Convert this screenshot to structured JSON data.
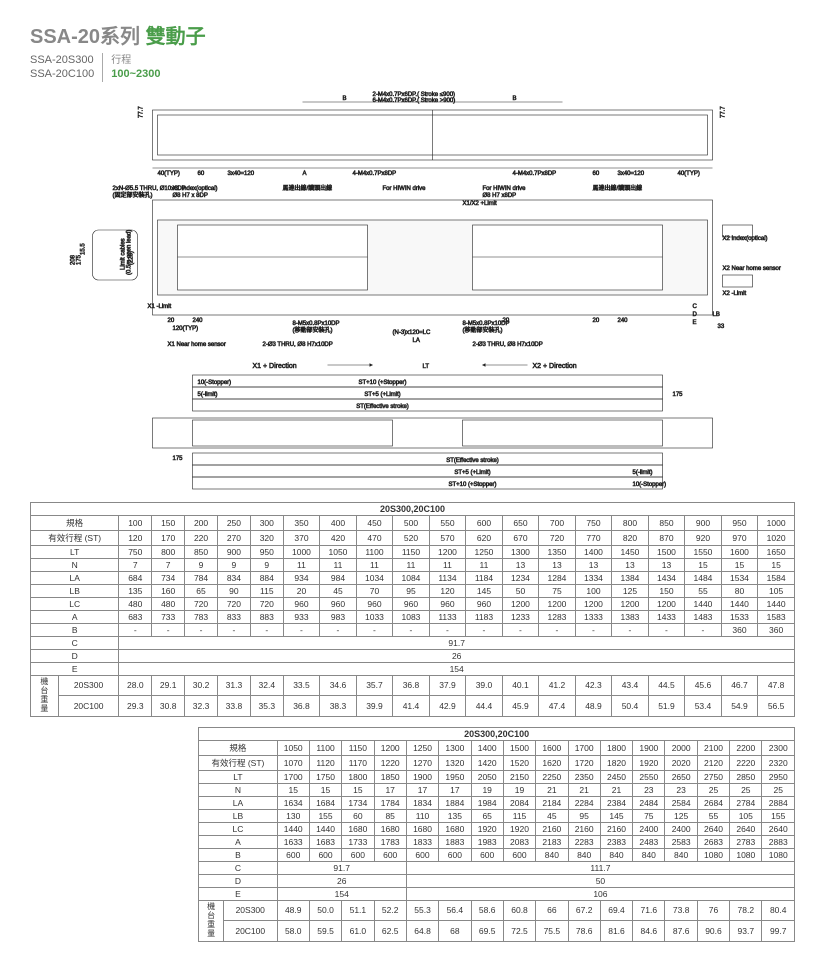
{
  "header": {
    "title_prefix": "SSA-20",
    "title_series": "系列",
    "title_suffix": "雙動子",
    "model1": "SSA-20S300",
    "model2": "SSA-20C100",
    "stroke_label": "行程",
    "stroke_range": "100~2300"
  },
  "diagram": {
    "callouts": {
      "c1": "2-M4x0.7Px6DP.( Stroke ≤900)",
      "c2": "6-M4x0.7Px6DP.( Stroke >900)",
      "c3": "4-M4x0.7Px8DP",
      "c4": "4-M4x0.7Px8DP",
      "c5": "2xN-Ø5.5 THRU, Ø10x6DP",
      "c5b": "(固定部安裝孔)",
      "c6": "X1 Index(optical)",
      "c6b": "Ø8 H7 x 8DP",
      "c7": "馬達出線/讀頭出線",
      "c8": "For HIWIN drive",
      "c9": "For HIWIN drive",
      "c9b": "Ø8 H7 x8DP",
      "c10": "馬達出線/讀頭出線",
      "c11": "X1/X2 +Limit",
      "c12": "X2 Index(optical)",
      "c13": "X2 Near home sensor",
      "c14": "X2 -Limit",
      "c15": "X1 -Limit",
      "c16": "Limit cables",
      "c16b": "(0.5m open lead)",
      "c17": "X1 Near home sensor",
      "c18": "8-M5x0.8Px10DP",
      "c18b": "(移動部安裝孔)",
      "c19": "8-M5x0.8Px10DP",
      "c19b": "(移動部安裝孔)",
      "c20": "2-Ø3 THRU, Ø8 H7x10DP",
      "c21": "2-Ø3 THRU, Ø8 H7x10DP",
      "c22": "(N-3)x120=LC",
      "dir1": "X1 + Direction",
      "dir2": "X2 + Direction",
      "st1": "10(-Stopper)",
      "st2": "5(-limit)",
      "st3": "ST+10 (+Stopper)",
      "st4": "ST+5 (+Limit)",
      "st5": "ST(Effective stroke)",
      "st6": "ST(Effective stroke)",
      "st7": "ST+5 (+Limit)",
      "st8": "ST+10 (+Stopper)",
      "st9": "5(-limit)",
      "st10": "10(-Stopper)"
    },
    "dims": {
      "d_77_7a": "77.7",
      "d_77_7b": "77.7",
      "d_B1": "B",
      "d_B2": "B",
      "d_40typ1": "40(TYP)",
      "d_40typ2": "40(TYP)",
      "d_60a": "60",
      "d_60b": "60",
      "d_3x40a": "3x40=120",
      "d_3x40b": "3x40=120",
      "d_A1": "A",
      "d_A2": "A",
      "d_15_5": "15.5",
      "d_208": "208",
      "d_175a": "175",
      "d_228": "(228)",
      "d_20a": "20",
      "d_20b": "20",
      "d_20c": "20",
      "d_240a": "240",
      "d_240b": "240",
      "d_120typ": "120(TYP)",
      "d_C": "C",
      "d_D": "D",
      "d_E": "E",
      "d_LA": "LA",
      "d_LB": "LB",
      "d_LT": "LT",
      "d_33": "33",
      "d_175b": "175",
      "d_175c": "175"
    }
  },
  "table1": {
    "caption": "20S300,20C100",
    "row_spec": "規格",
    "row_st": "有效行程 (ST)",
    "row_lt": "LT",
    "row_n": "N",
    "row_la": "LA",
    "row_lb": "LB",
    "row_lc": "LC",
    "row_a": "A",
    "row_b": "B",
    "row_c": "C",
    "row_d": "D",
    "row_e": "E",
    "row_wt": "機台重量",
    "row_20s300": "20S300",
    "row_20c100": "20C100",
    "spec": [
      "100",
      "150",
      "200",
      "250",
      "300",
      "350",
      "400",
      "450",
      "500",
      "550",
      "600",
      "650",
      "700",
      "750",
      "800",
      "850",
      "900",
      "950",
      "1000"
    ],
    "st": [
      "120",
      "170",
      "220",
      "270",
      "320",
      "370",
      "420",
      "470",
      "520",
      "570",
      "620",
      "670",
      "720",
      "770",
      "820",
      "870",
      "920",
      "970",
      "1020"
    ],
    "lt": [
      "750",
      "800",
      "850",
      "900",
      "950",
      "1000",
      "1050",
      "1100",
      "1150",
      "1200",
      "1250",
      "1300",
      "1350",
      "1400",
      "1450",
      "1500",
      "1550",
      "1600",
      "1650"
    ],
    "n": [
      "7",
      "7",
      "9",
      "9",
      "9",
      "11",
      "11",
      "11",
      "11",
      "11",
      "11",
      "13",
      "13",
      "13",
      "13",
      "13",
      "15",
      "15",
      "15"
    ],
    "la": [
      "684",
      "734",
      "784",
      "834",
      "884",
      "934",
      "984",
      "1034",
      "1084",
      "1134",
      "1184",
      "1234",
      "1284",
      "1334",
      "1384",
      "1434",
      "1484",
      "1534",
      "1584"
    ],
    "lb": [
      "135",
      "160",
      "65",
      "90",
      "115",
      "20",
      "45",
      "70",
      "95",
      "120",
      "145",
      "50",
      "75",
      "100",
      "125",
      "150",
      "55",
      "80",
      "105"
    ],
    "lc": [
      "480",
      "480",
      "720",
      "720",
      "720",
      "960",
      "960",
      "960",
      "960",
      "960",
      "960",
      "1200",
      "1200",
      "1200",
      "1200",
      "1200",
      "1440",
      "1440",
      "1440"
    ],
    "a": [
      "683",
      "733",
      "783",
      "833",
      "883",
      "933",
      "983",
      "1033",
      "1083",
      "1133",
      "1183",
      "1233",
      "1283",
      "1333",
      "1383",
      "1433",
      "1483",
      "1533",
      "1583"
    ],
    "b": [
      "-",
      "-",
      "-",
      "-",
      "-",
      "-",
      "-",
      "-",
      "-",
      "-",
      "-",
      "-",
      "-",
      "-",
      "-",
      "-",
      "-",
      "360",
      "360"
    ],
    "c": "91.7",
    "d": "26",
    "e": "154",
    "w20s300": [
      "28.0",
      "29.1",
      "30.2",
      "31.3",
      "32.4",
      "33.5",
      "34.6",
      "35.7",
      "36.8",
      "37.9",
      "39.0",
      "40.1",
      "41.2",
      "42.3",
      "43.4",
      "44.5",
      "45.6",
      "46.7",
      "47.8"
    ],
    "w20c100": [
      "29.3",
      "30.8",
      "32.3",
      "33.8",
      "35.3",
      "36.8",
      "38.3",
      "39.9",
      "41.4",
      "42.9",
      "44.4",
      "45.9",
      "47.4",
      "48.9",
      "50.4",
      "51.9",
      "53.4",
      "54.9",
      "56.5"
    ]
  },
  "table2": {
    "caption": "20S300,20C100",
    "row_spec": "規格",
    "row_st": "有效行程 (ST)",
    "row_lt": "LT",
    "row_n": "N",
    "row_la": "LA",
    "row_lb": "LB",
    "row_lc": "LC",
    "row_a": "A",
    "row_b": "B",
    "row_c": "C",
    "row_d": "D",
    "row_e": "E",
    "row_wt": "機台重量",
    "row_20s300": "20S300",
    "row_20c100": "20C100",
    "spec": [
      "1050",
      "1100",
      "1150",
      "1200",
      "1250",
      "1300",
      "1400",
      "1500",
      "1600",
      "1700",
      "1800",
      "1900",
      "2000",
      "2100",
      "2200",
      "2300"
    ],
    "st": [
      "1070",
      "1120",
      "1170",
      "1220",
      "1270",
      "1320",
      "1420",
      "1520",
      "1620",
      "1720",
      "1820",
      "1920",
      "2020",
      "2120",
      "2220",
      "2320"
    ],
    "lt": [
      "1700",
      "1750",
      "1800",
      "1850",
      "1900",
      "1950",
      "2050",
      "2150",
      "2250",
      "2350",
      "2450",
      "2550",
      "2650",
      "2750",
      "2850",
      "2950"
    ],
    "n": [
      "15",
      "15",
      "15",
      "17",
      "17",
      "17",
      "19",
      "19",
      "21",
      "21",
      "21",
      "23",
      "23",
      "25",
      "25",
      "25"
    ],
    "la": [
      "1634",
      "1684",
      "1734",
      "1784",
      "1834",
      "1884",
      "1984",
      "2084",
      "2184",
      "2284",
      "2384",
      "2484",
      "2584",
      "2684",
      "2784",
      "2884"
    ],
    "lb": [
      "130",
      "155",
      "60",
      "85",
      "110",
      "135",
      "65",
      "115",
      "45",
      "95",
      "145",
      "75",
      "125",
      "55",
      "105",
      "155"
    ],
    "lc": [
      "1440",
      "1440",
      "1680",
      "1680",
      "1680",
      "1680",
      "1920",
      "1920",
      "2160",
      "2160",
      "2160",
      "2400",
      "2400",
      "2640",
      "2640",
      "2640"
    ],
    "a": [
      "1633",
      "1683",
      "1733",
      "1783",
      "1833",
      "1883",
      "1983",
      "2083",
      "2183",
      "2283",
      "2383",
      "2483",
      "2583",
      "2683",
      "2783",
      "2883"
    ],
    "b": [
      "600",
      "600",
      "600",
      "600",
      "600",
      "600",
      "600",
      "600",
      "840",
      "840",
      "840",
      "840",
      "840",
      "1080",
      "1080",
      "1080"
    ],
    "c_split": [
      "91.7",
      "111.7"
    ],
    "c_span": [
      4,
      12
    ],
    "d_split": [
      "26",
      "50"
    ],
    "d_span": [
      4,
      12
    ],
    "e_split": [
      "154",
      "106"
    ],
    "e_span": [
      4,
      12
    ],
    "w20s300": [
      "48.9",
      "50.0",
      "51.1",
      "52.2",
      "55.3",
      "56.4",
      "58.6",
      "60.8",
      "66",
      "67.2",
      "69.4",
      "71.6",
      "73.8",
      "76",
      "78.2",
      "80.4"
    ],
    "w20c100": [
      "58.0",
      "59.5",
      "61.0",
      "62.5",
      "64.8",
      "68",
      "69.5",
      "72.5",
      "75.5",
      "78.6",
      "81.6",
      "84.6",
      "87.6",
      "90.6",
      "93.7",
      "99.7"
    ]
  }
}
